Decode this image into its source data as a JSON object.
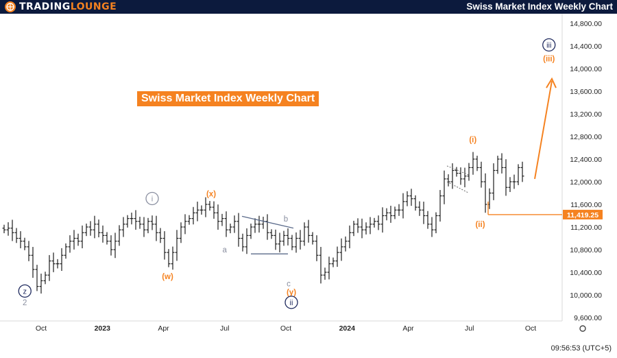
{
  "header": {
    "brand_part1": "TRADING",
    "brand_part2": "LOUNGE",
    "title": "Swiss Market Index Weekly Chart"
  },
  "banner": {
    "text": "Swiss Market Index Weekly Chart"
  },
  "footer": {
    "time": "09:56:53 (UTC+5)"
  },
  "colors": {
    "orange": "#f58220",
    "navy": "#1f2a5e",
    "grey": "#8a8fa0",
    "bar": "#1a1a1a"
  },
  "chart_data": {
    "type": "ohlc",
    "title": "Swiss Market Index Weekly Chart",
    "ylim": [
      9400,
      14900
    ],
    "y_ticks": [
      {
        "value": 9600,
        "label": "9,600.00"
      },
      {
        "value": 10000,
        "label": "10,000.00"
      },
      {
        "value": 10400,
        "label": "10,400.00"
      },
      {
        "value": 10800,
        "label": "10,800.00"
      },
      {
        "value": 11200,
        "label": "11,200.00"
      },
      {
        "value": 11600,
        "label": "11,600.00"
      },
      {
        "value": 12000,
        "label": "12,000.00"
      },
      {
        "value": 12400,
        "label": "12,400.00"
      },
      {
        "value": 12800,
        "label": "12,800.00"
      },
      {
        "value": 13200,
        "label": "13,200.00"
      },
      {
        "value": 13600,
        "label": "13,600.00"
      },
      {
        "value": 14000,
        "label": "14,000.00"
      },
      {
        "value": 14400,
        "label": "14,400.00"
      },
      {
        "value": 14800,
        "label": "14,800.00"
      }
    ],
    "x_ticks": [
      {
        "date": "2022-10",
        "label": "Oct",
        "bold": false
      },
      {
        "date": "2023-01",
        "label": "2023",
        "bold": true
      },
      {
        "date": "2023-04",
        "label": "Apr",
        "bold": false
      },
      {
        "date": "2023-07",
        "label": "Jul",
        "bold": false
      },
      {
        "date": "2023-10",
        "label": "Oct",
        "bold": false
      },
      {
        "date": "2024-01",
        "label": "2024",
        "bold": true
      },
      {
        "date": "2024-04",
        "label": "Apr",
        "bold": false
      },
      {
        "date": "2024-07",
        "label": "Jul",
        "bold": false
      },
      {
        "date": "2024-10",
        "label": "Oct",
        "bold": false
      }
    ],
    "price_line": {
      "value": 11419.25,
      "label": "11,419.25"
    },
    "closes": [
      11150,
      11180,
      11100,
      11000,
      10950,
      10850,
      10700,
      10450,
      10150,
      10250,
      10350,
      10600,
      10550,
      10550,
      10700,
      10850,
      10950,
      11000,
      10950,
      11100,
      11200,
      11150,
      11250,
      11100,
      11050,
      10950,
      10800,
      10950,
      11150,
      11250,
      11350,
      11350,
      11300,
      11250,
      11150,
      11300,
      11250,
      11100,
      11000,
      10750,
      10550,
      10750,
      11000,
      11200,
      11300,
      11350,
      11450,
      11500,
      11500,
      11600,
      11550,
      11450,
      11300,
      11350,
      11150,
      11200,
      11300,
      11000,
      10850,
      11050,
      11200,
      11250,
      11250,
      11300,
      11100,
      11050,
      10900,
      10950,
      11050,
      11000,
      10850,
      11000,
      10950,
      11200,
      11050,
      10950,
      10700,
      10350,
      10400,
      10550,
      10600,
      10750,
      10850,
      10950,
      11100,
      11250,
      11200,
      11150,
      11200,
      11250,
      11300,
      11250,
      11400,
      11450,
      11400,
      11500,
      11500,
      11650,
      11750,
      11700,
      11550,
      11500,
      11400,
      11250,
      11150,
      11400,
      11750,
      12050,
      12000,
      12200,
      12150,
      12050,
      12100,
      12250,
      12400,
      12250,
      12000,
      11600,
      11800,
      12200,
      12400,
      12250,
      11900,
      12000,
      12000,
      12250,
      12100
    ],
    "waves": [
      {
        "label": "z",
        "date": "2022-09",
        "value": 10020,
        "style": "circle-navy"
      },
      {
        "label": "2",
        "date": "2022-09",
        "value": 9820,
        "style": "text-grey"
      },
      {
        "label": "i",
        "date": "2023-02",
        "value": 11655,
        "style": "circle-grey"
      },
      {
        "label": "(w)",
        "date": "2023-04",
        "value": 10280,
        "style": "text-orange"
      },
      {
        "label": "(x)",
        "date": "2023-06",
        "value": 11740,
        "style": "text-orange"
      },
      {
        "label": "a",
        "date": "2023-07",
        "value": 10750,
        "style": "text-grey"
      },
      {
        "label": "b",
        "date": "2023-10",
        "value": 11300,
        "style": "text-grey"
      },
      {
        "label": "c",
        "date": "2023-10",
        "value": 10150,
        "style": "text-grey"
      },
      {
        "label": "(y)",
        "date": "2023-10",
        "value": 10000,
        "style": "text-orange"
      },
      {
        "label": "ii",
        "date": "2023-10",
        "value": 9820,
        "style": "circle-navy"
      },
      {
        "label": "(i)",
        "date": "2024-07",
        "value": 12700,
        "style": "text-orange"
      },
      {
        "label": "(ii)",
        "date": "2024-08",
        "value": 11200,
        "style": "text-orange"
      },
      {
        "label": "iii",
        "date": "2024-11",
        "value": 14370,
        "style": "circle-navy"
      },
      {
        "label": "(iii)",
        "date": "2024-11",
        "value": 14130,
        "style": "text-orange"
      }
    ]
  }
}
